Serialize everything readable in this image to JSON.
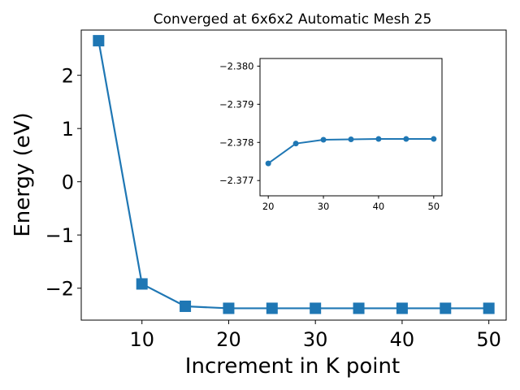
{
  "chart_data": [
    {
      "type": "line",
      "title": "Converged at 6x6x2 Automatic Mesh 25",
      "xlabel": "Increment in K point",
      "ylabel": "Energy (eV)",
      "xlim": [
        3,
        52
      ],
      "ylim": [
        -2.6,
        2.85
      ],
      "x_ticks": [
        10,
        20,
        30,
        40,
        50
      ],
      "x_tick_labels": [
        "10",
        "20",
        "30",
        "40",
        "50"
      ],
      "y_ticks": [
        -2,
        -1,
        0,
        1,
        2
      ],
      "y_tick_labels": [
        "−2",
        "−1",
        "0",
        "1",
        "2"
      ],
      "grid": false,
      "marker": "square",
      "color": "#1f77b4",
      "series": [
        {
          "x": [
            5,
            10,
            15,
            20,
            25,
            30,
            35,
            40,
            45,
            50
          ],
          "y": [
            2.65,
            -1.92,
            -2.34,
            -2.378,
            -2.378,
            -2.378,
            -2.378,
            -2.378,
            -2.378,
            -2.378
          ]
        }
      ]
    },
    {
      "type": "line",
      "title": "",
      "xlabel": "",
      "ylabel": "",
      "xlim": [
        18.5,
        51.5
      ],
      "ylim": [
        -2.3766,
        -2.3802
      ],
      "y_inverted": true,
      "x_ticks": [
        20,
        30,
        40,
        50
      ],
      "x_tick_labels": [
        "20",
        "30",
        "40",
        "50"
      ],
      "y_ticks": [
        -2.377,
        -2.378,
        -2.379,
        -2.38
      ],
      "y_tick_labels": [
        "−2.377",
        "−2.378",
        "−2.379",
        "−2.380"
      ],
      "grid": false,
      "marker": "circle",
      "color": "#1f77b4",
      "series": [
        {
          "x": [
            20,
            25,
            30,
            35,
            40,
            45,
            50
          ],
          "y": [
            -2.37745,
            -2.37797,
            -2.37807,
            -2.37808,
            -2.37809,
            -2.37809,
            -2.37809
          ]
        }
      ]
    }
  ]
}
